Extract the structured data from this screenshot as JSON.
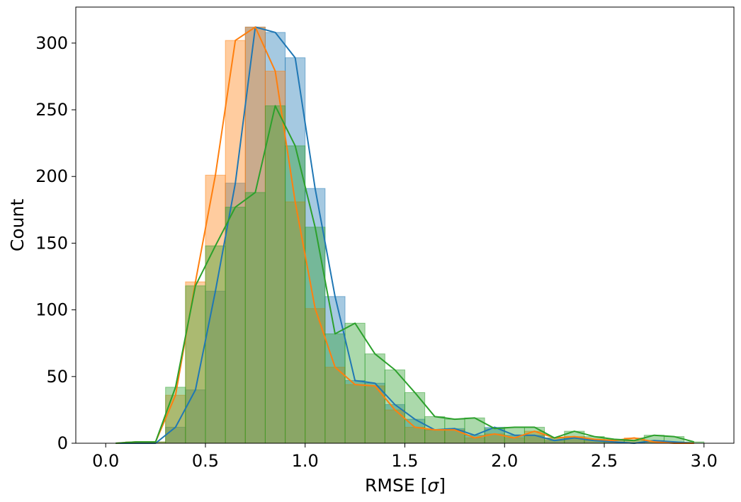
{
  "chart_data": {
    "type": "bar",
    "title": "",
    "xlabel_prefix": "RMSE [",
    "xlabel_symbol": "σ",
    "xlabel_suffix": "]",
    "ylabel": "Count",
    "xlim": [
      -0.15,
      3.15
    ],
    "ylim": [
      0,
      327
    ],
    "bin_edges": [
      0.0,
      0.1,
      0.2,
      0.3,
      0.4,
      0.5,
      0.6,
      0.7,
      0.8,
      0.9,
      1.0,
      1.1,
      1.2,
      1.3,
      1.4,
      1.5,
      1.6,
      1.7,
      1.8,
      1.9,
      2.0,
      2.1,
      2.2,
      2.3,
      2.4,
      2.5,
      2.6,
      2.7,
      2.8,
      2.9,
      3.0
    ],
    "bin_width": 0.1,
    "x_ticks": [
      0.0,
      0.5,
      1.0,
      1.5,
      2.0,
      2.5,
      3.0
    ],
    "x_tick_labels": [
      "0.0",
      "0.5",
      "1.0",
      "1.5",
      "2.0",
      "2.5",
      "3.0"
    ],
    "y_ticks": [
      0,
      50,
      100,
      150,
      200,
      250,
      300
    ],
    "y_tick_labels": [
      "0",
      "50",
      "100",
      "150",
      "200",
      "250",
      "300"
    ],
    "series": [
      {
        "color": "#1f77b4",
        "counts": [
          0,
          0,
          0,
          12,
          40,
          114,
          195,
          312,
          308,
          289,
          191,
          110,
          47,
          45,
          29,
          18,
          10,
          11,
          6,
          12,
          6,
          6,
          2,
          4,
          2,
          1,
          0,
          2,
          1,
          0
        ],
        "line_x": [
          0.05,
          0.15,
          0.25,
          0.35,
          0.45,
          0.55,
          0.65,
          0.75,
          0.85,
          0.95,
          1.05,
          1.15,
          1.25,
          1.35,
          1.45,
          1.55,
          1.65,
          1.75,
          1.85,
          1.95,
          2.05,
          2.15,
          2.25,
          2.35,
          2.45,
          2.55,
          2.65,
          2.75,
          2.85,
          2.95
        ],
        "line_y": [
          0,
          0,
          0,
          12,
          40,
          114,
          195,
          312,
          308,
          289,
          191,
          110,
          47,
          45,
          29,
          18,
          10,
          11,
          6,
          12,
          6,
          6,
          2,
          4,
          2,
          1,
          0,
          2,
          1,
          0
        ]
      },
      {
        "color": "#ff7f0e",
        "counts": [
          0,
          1,
          1,
          36,
          121,
          201,
          302,
          312,
          279,
          181,
          101,
          57,
          44,
          43,
          25,
          12,
          10,
          10,
          4,
          7,
          4,
          9,
          4,
          5,
          3,
          2,
          4,
          1,
          0,
          0
        ],
        "line_x": [
          0.05,
          0.15,
          0.25,
          0.35,
          0.45,
          0.55,
          0.65,
          0.75,
          0.85,
          0.95,
          1.05,
          1.15,
          1.25,
          1.35,
          1.45,
          1.55,
          1.65,
          1.75,
          1.85,
          1.95,
          2.05,
          2.15,
          2.25,
          2.35,
          2.45,
          2.55,
          2.65,
          2.75,
          2.85,
          2.95
        ],
        "line_y": [
          0,
          1,
          1,
          36,
          121,
          201,
          302,
          312,
          279,
          181,
          101,
          57,
          44,
          43,
          25,
          12,
          10,
          10,
          4,
          7,
          4,
          9,
          4,
          5,
          3,
          2,
          4,
          1,
          0,
          0
        ]
      },
      {
        "color": "#2ca02c",
        "counts": [
          0,
          1,
          1,
          42,
          118,
          148,
          177,
          188,
          253,
          223,
          162,
          82,
          90,
          67,
          55,
          38,
          20,
          18,
          19,
          11,
          12,
          12,
          4,
          9,
          5,
          3,
          2,
          6,
          5,
          1
        ],
        "line_x": [
          0.05,
          0.15,
          0.25,
          0.35,
          0.45,
          0.55,
          0.65,
          0.75,
          0.85,
          0.95,
          1.05,
          1.15,
          1.25,
          1.35,
          1.45,
          1.55,
          1.65,
          1.75,
          1.85,
          1.95,
          2.05,
          2.15,
          2.25,
          2.35,
          2.45,
          2.55,
          2.65,
          2.75,
          2.85,
          2.95
        ],
        "line_y": [
          0,
          1,
          1,
          42,
          118,
          148,
          177,
          188,
          253,
          223,
          162,
          82,
          90,
          67,
          55,
          38,
          20,
          18,
          19,
          11,
          12,
          12,
          4,
          9,
          5,
          3,
          2,
          6,
          5,
          1
        ]
      }
    ]
  }
}
